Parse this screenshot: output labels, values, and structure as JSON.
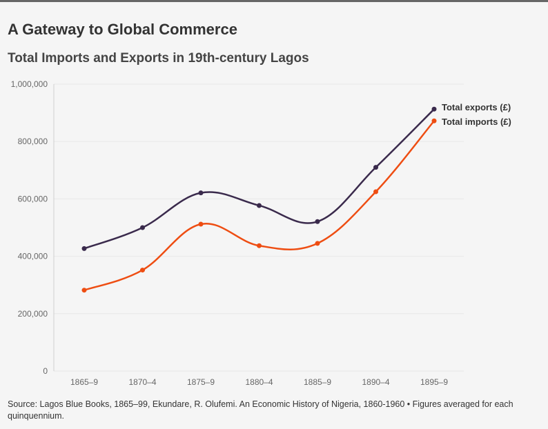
{
  "header": {
    "title": "A Gateway to Global Commerce",
    "subtitle": "Total Imports and Exports in 19th-century Lagos"
  },
  "footer": {
    "source": "Source: Lagos Blue Books, 1865–99, Ekundare, R. Olufemi. An Economic History of Nigeria, 1860-1960 • Figures averaged for each quinquennium."
  },
  "colors": {
    "exports": "#3a2a4c",
    "imports": "#ee4d12",
    "axis_text": "#666666",
    "grid": "#e8e8e8"
  },
  "chart_data": {
    "type": "line",
    "title": "A Gateway to Global Commerce",
    "subtitle": "Total Imports and Exports in 19th-century Lagos",
    "xlabel": "",
    "ylabel": "",
    "categories": [
      "1865–9",
      "1870–4",
      "1875–9",
      "1880–4",
      "1885–9",
      "1890–4",
      "1895–9"
    ],
    "ylim": [
      0,
      1000000
    ],
    "yticks": [
      0,
      200000,
      400000,
      600000,
      800000,
      1000000
    ],
    "ytick_labels": [
      "0",
      "200,000",
      "400,000",
      "600,000",
      "800,000",
      "1,000,000"
    ],
    "grid": true,
    "legend": "right end of lines",
    "series": [
      {
        "name": "Total exports (£)",
        "key": "exports",
        "values": [
          427000,
          500000,
          621000,
          577000,
          521000,
          710000,
          913000
        ]
      },
      {
        "name": "Total imports (£)",
        "key": "imports",
        "values": [
          282000,
          352000,
          512000,
          437000,
          445000,
          625000,
          872000
        ]
      }
    ]
  }
}
